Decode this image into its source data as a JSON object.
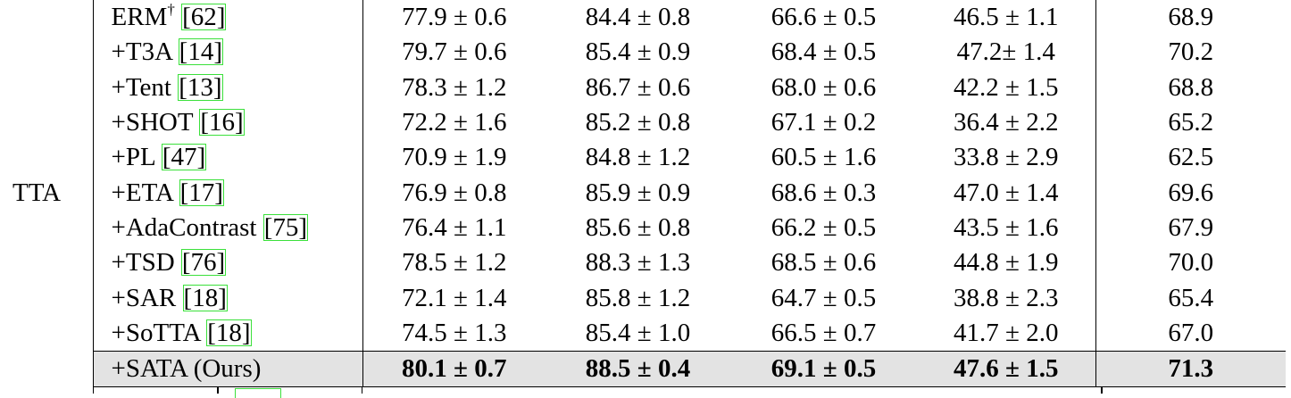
{
  "table": {
    "group_label": "TTA",
    "rows": [
      {
        "method": "ERM",
        "dagger": "†",
        "cite": "[62]",
        "v1": "77.9 ± 0.6",
        "v2": "84.4 ± 0.8",
        "v3": "66.6 ± 0.5",
        "v4": "46.5 ± 1.1",
        "avg": "68.9"
      },
      {
        "method": "+T3A",
        "cite": "[14]",
        "v1": "79.7 ± 0.6",
        "v2": "85.4 ± 0.9",
        "v3": "68.4 ± 0.5",
        "v4": "47.2± 1.4",
        "avg": "70.2"
      },
      {
        "method": "+Tent",
        "cite": "[13]",
        "v1": "78.3 ± 1.2",
        "v2": "86.7 ± 0.6",
        "v3": "68.0 ± 0.6",
        "v4": "42.2 ± 1.5",
        "avg": "68.8"
      },
      {
        "method": "+SHOT",
        "cite": "[16]",
        "v1": "72.2 ± 1.6",
        "v2": "85.2 ± 0.8",
        "v3": "67.1 ± 0.2",
        "v4": "36.4 ± 2.2",
        "avg": "65.2"
      },
      {
        "method": "+PL",
        "cite": "[47]",
        "v1": "70.9 ± 1.9",
        "v2": "84.8 ± 1.2",
        "v3": "60.5 ± 1.6",
        "v4": "33.8 ± 2.9",
        "avg": "62.5"
      },
      {
        "method": "+ETA",
        "cite": "[17]",
        "v1": "76.9 ± 0.8",
        "v2": "85.9 ± 0.9",
        "v3": "68.6 ± 0.3",
        "v4": "47.0 ± 1.4",
        "avg": "69.6"
      },
      {
        "method": "+AdaContrast",
        "cite": "[75]",
        "v1": "76.4 ± 1.1",
        "v2": "85.6 ± 0.8",
        "v3": "66.2 ± 0.5",
        "v4": "43.5 ± 1.6",
        "avg": "67.9"
      },
      {
        "method": "+TSD",
        "cite": "[76]",
        "v1": "78.5 ± 1.2",
        "v2": "88.3 ± 1.3",
        "v3": "68.5 ± 0.6",
        "v4": "44.8 ± 1.9",
        "avg": "70.0"
      },
      {
        "method": "+SAR",
        "cite": "[18]",
        "v1": "72.1 ± 1.4",
        "v2": "85.8 ± 1.2",
        "v3": "64.7 ± 0.5",
        "v4": "38.8 ± 2.3",
        "avg": "65.4"
      },
      {
        "method": "+SoTTA",
        "cite": "[18]",
        "v1": "74.5 ± 1.3",
        "v2": "85.4 ± 1.0",
        "v3": "66.5 ± 0.7",
        "v4": "41.7 ± 2.0",
        "avg": "67.0"
      },
      {
        "method": "+SATA (Ours)",
        "v1": "80.1 ± 0.7",
        "v2": "88.5 ± 0.4",
        "v3": "69.1 ± 0.5",
        "v4": "47.6 ± 1.5",
        "avg": "71.3"
      }
    ]
  }
}
